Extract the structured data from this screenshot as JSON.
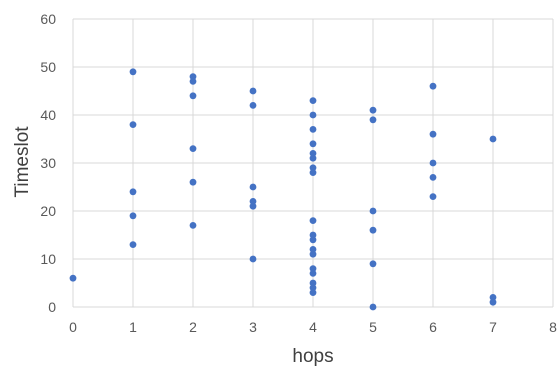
{
  "chart_data": {
    "type": "scatter",
    "title": "",
    "xlabel": "hops",
    "ylabel": "Timeslot",
    "xlim": [
      0,
      8
    ],
    "ylim": [
      0,
      60
    ],
    "x_ticks": [
      0,
      1,
      2,
      3,
      4,
      5,
      6,
      7,
      8
    ],
    "y_ticks": [
      0,
      10,
      20,
      30,
      40,
      50,
      60
    ],
    "grid": true,
    "legend": "none",
    "marker_color": "#4472C4",
    "gridline_color": "#D9D9D9",
    "series": [
      {
        "points": [
          {
            "x": 0,
            "y": 6
          },
          {
            "x": 1,
            "y": 49
          },
          {
            "x": 1,
            "y": 38
          },
          {
            "x": 1,
            "y": 24
          },
          {
            "x": 1,
            "y": 19
          },
          {
            "x": 1,
            "y": 13
          },
          {
            "x": 2,
            "y": 48
          },
          {
            "x": 2,
            "y": 47
          },
          {
            "x": 2,
            "y": 44
          },
          {
            "x": 2,
            "y": 33
          },
          {
            "x": 2,
            "y": 26
          },
          {
            "x": 2,
            "y": 17
          },
          {
            "x": 3,
            "y": 45
          },
          {
            "x": 3,
            "y": 42
          },
          {
            "x": 3,
            "y": 25
          },
          {
            "x": 3,
            "y": 22
          },
          {
            "x": 3,
            "y": 21
          },
          {
            "x": 3,
            "y": 10
          },
          {
            "x": 4,
            "y": 43
          },
          {
            "x": 4,
            "y": 40
          },
          {
            "x": 4,
            "y": 37
          },
          {
            "x": 4,
            "y": 34
          },
          {
            "x": 4,
            "y": 32
          },
          {
            "x": 4,
            "y": 31
          },
          {
            "x": 4,
            "y": 29
          },
          {
            "x": 4,
            "y": 28
          },
          {
            "x": 4,
            "y": 18
          },
          {
            "x": 4,
            "y": 15
          },
          {
            "x": 4,
            "y": 14
          },
          {
            "x": 4,
            "y": 12
          },
          {
            "x": 4,
            "y": 11
          },
          {
            "x": 4,
            "y": 8
          },
          {
            "x": 4,
            "y": 7
          },
          {
            "x": 4,
            "y": 5
          },
          {
            "x": 4,
            "y": 4
          },
          {
            "x": 4,
            "y": 3
          },
          {
            "x": 5,
            "y": 41
          },
          {
            "x": 5,
            "y": 39
          },
          {
            "x": 5,
            "y": 20
          },
          {
            "x": 5,
            "y": 16
          },
          {
            "x": 5,
            "y": 9
          },
          {
            "x": 5,
            "y": 0
          },
          {
            "x": 6,
            "y": 46
          },
          {
            "x": 6,
            "y": 36
          },
          {
            "x": 6,
            "y": 30
          },
          {
            "x": 6,
            "y": 27
          },
          {
            "x": 6,
            "y": 23
          },
          {
            "x": 7,
            "y": 35
          },
          {
            "x": 7,
            "y": 2
          },
          {
            "x": 7,
            "y": 1
          }
        ]
      }
    ]
  }
}
